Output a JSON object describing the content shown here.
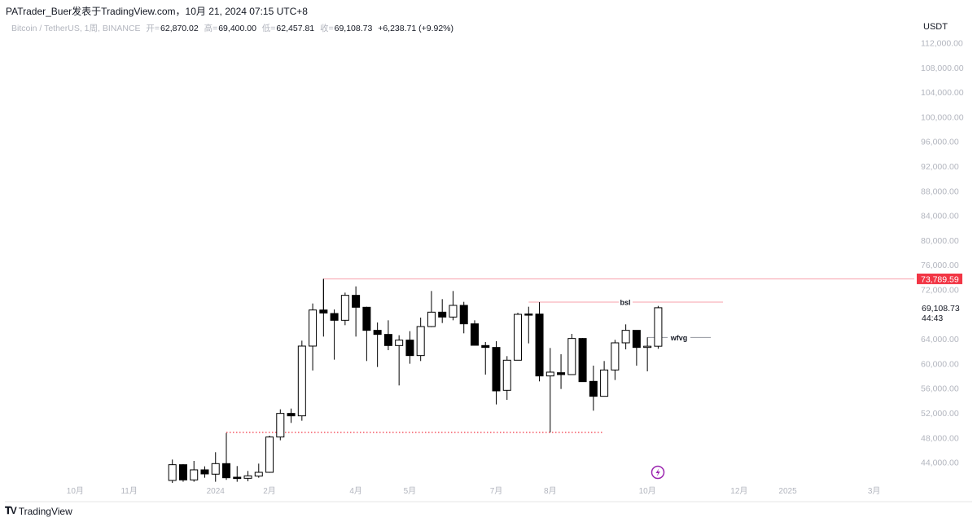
{
  "header": {
    "publish_line": "PATrader_Buer发表于TradingView.com，10月 21, 2024 07:15 UTC+8",
    "symbol": "Bitcoin / TetherUS, 1周, BINANCE",
    "open_label": "开=",
    "open": "62,870.02",
    "high_label": "高=",
    "high": "69,400.00",
    "low_label": "低=",
    "low": "62,457.81",
    "close_label": "收=",
    "close": "69,108.73",
    "change": "+6,238.71 (+9.92%)"
  },
  "price_axis": {
    "currency": "USDT",
    "ticks": [
      "112,000.00",
      "108,000.00",
      "104,000.00",
      "100,000.00",
      "96,000.00",
      "92,000.00",
      "88,000.00",
      "84,000.00",
      "80,000.00",
      "76,000.00",
      "72,000.00",
      "64,000.00",
      "60,000.00",
      "56,000.00",
      "52,000.00",
      "48,000.00",
      "44,000.00"
    ],
    "current_price": "69,108.73",
    "countdown": "44:43",
    "level_label": "73,789.59"
  },
  "time_axis": {
    "labels": [
      "10月",
      "11月",
      "2024",
      "2月",
      "4月",
      "5月",
      "7月",
      "8月",
      "10月",
      "12月",
      "2025",
      "3月"
    ]
  },
  "annotations": {
    "bsl_label": "bsl",
    "wfvg_label": "wfvg"
  },
  "colors": {
    "level_line": "#f23645",
    "bsl_line": "#f7a1ab",
    "dotted_line": "#f23645",
    "bull_fill": "#ffffff",
    "bear_fill": "#000000",
    "wfvg_line": "#9598a1",
    "alert_icon": "#9c27b0"
  },
  "footer": {
    "brand": "TradingView"
  },
  "chart_data": {
    "type": "candlestick",
    "interval": "1周",
    "ylim": [
      40000,
      114000
    ],
    "grid": false,
    "candles": [
      {
        "o": 41113,
        "h": 44500,
        "l": 40673,
        "c": 43665
      },
      {
        "o": 43665,
        "h": 43750,
        "l": 40900,
        "c": 41200
      },
      {
        "o": 41200,
        "h": 44280,
        "l": 40900,
        "c": 42830
      },
      {
        "o": 42830,
        "h": 43400,
        "l": 41550,
        "c": 42170
      },
      {
        "o": 42130,
        "h": 45690,
        "l": 40900,
        "c": 43840
      },
      {
        "o": 43840,
        "h": 48813,
        "l": 41200,
        "c": 41550
      },
      {
        "o": 41640,
        "h": 43445,
        "l": 40900,
        "c": 41420
      },
      {
        "o": 41460,
        "h": 42650,
        "l": 40980,
        "c": 41860
      },
      {
        "o": 41820,
        "h": 43840,
        "l": 41550,
        "c": 42430
      },
      {
        "o": 42430,
        "h": 48370,
        "l": 42345,
        "c": 48153
      },
      {
        "o": 48153,
        "h": 52640,
        "l": 47625,
        "c": 51980
      },
      {
        "o": 51980,
        "h": 52770,
        "l": 50440,
        "c": 51585
      },
      {
        "o": 51585,
        "h": 63773,
        "l": 50793,
        "c": 62893
      },
      {
        "o": 62893,
        "h": 69800,
        "l": 58933,
        "c": 68745
      },
      {
        "o": 68745,
        "h": 73790,
        "l": 64433,
        "c": 68260
      },
      {
        "o": 68173,
        "h": 68833,
        "l": 60693,
        "c": 67073
      },
      {
        "o": 67073,
        "h": 71561,
        "l": 66281,
        "c": 71121
      },
      {
        "o": 71121,
        "h": 72573,
        "l": 64433,
        "c": 69185
      },
      {
        "o": 69185,
        "h": 69273,
        "l": 60473,
        "c": 65445
      },
      {
        "o": 65445,
        "h": 66721,
        "l": 59505,
        "c": 64785
      },
      {
        "o": 64785,
        "h": 67073,
        "l": 62233,
        "c": 62981
      },
      {
        "o": 62981,
        "h": 64653,
        "l": 56513,
        "c": 63861
      },
      {
        "o": 63861,
        "h": 65313,
        "l": 60033,
        "c": 61353
      },
      {
        "o": 61353,
        "h": 67513,
        "l": 60473,
        "c": 66061
      },
      {
        "o": 66061,
        "h": 71825,
        "l": 65973,
        "c": 68393
      },
      {
        "o": 68393,
        "h": 70505,
        "l": 66633,
        "c": 67601
      },
      {
        "o": 67601,
        "h": 71825,
        "l": 67073,
        "c": 69493
      },
      {
        "o": 69493,
        "h": 70065,
        "l": 64961,
        "c": 66501
      },
      {
        "o": 66501,
        "h": 67073,
        "l": 63025,
        "c": 63025
      },
      {
        "o": 62981,
        "h": 63553,
        "l": 58273,
        "c": 62673
      },
      {
        "o": 62673,
        "h": 63685,
        "l": 53433,
        "c": 55633
      },
      {
        "o": 55721,
        "h": 61265,
        "l": 54181,
        "c": 60605
      },
      {
        "o": 60605,
        "h": 68305,
        "l": 60605,
        "c": 68041
      },
      {
        "o": 68100,
        "h": 69273,
        "l": 63333,
        "c": 68000
      },
      {
        "o": 68085,
        "h": 70016,
        "l": 57173,
        "c": 58053
      },
      {
        "o": 58053,
        "h": 62585,
        "l": 48900,
        "c": 58669
      },
      {
        "o": 58581,
        "h": 61573,
        "l": 55941,
        "c": 58273
      },
      {
        "o": 58273,
        "h": 64873,
        "l": 58273,
        "c": 64125
      },
      {
        "o": 64125,
        "h": 64213,
        "l": 57129,
        "c": 57129
      },
      {
        "o": 57173,
        "h": 59725,
        "l": 52421,
        "c": 54753
      },
      {
        "o": 54753,
        "h": 60473,
        "l": 54753,
        "c": 59021
      },
      {
        "o": 59021,
        "h": 63905,
        "l": 57393,
        "c": 63421
      },
      {
        "o": 63421,
        "h": 66413,
        "l": 62365,
        "c": 65445
      },
      {
        "o": 65445,
        "h": 65445,
        "l": 59725,
        "c": 62673
      },
      {
        "o": 62750,
        "h": 64300,
        "l": 58801,
        "c": 62870
      },
      {
        "o": 62870.02,
        "h": 69400.0,
        "l": 62457.81,
        "c": 69108.73
      }
    ],
    "levels": [
      {
        "name": "high-level",
        "price": 73789.59,
        "style": "solid"
      },
      {
        "name": "bsl",
        "price": 70016,
        "style": "solid"
      },
      {
        "name": "wfvg",
        "price": 64300,
        "style": "solid"
      },
      {
        "name": "low-level",
        "price": 48900,
        "style": "dotted"
      }
    ]
  }
}
